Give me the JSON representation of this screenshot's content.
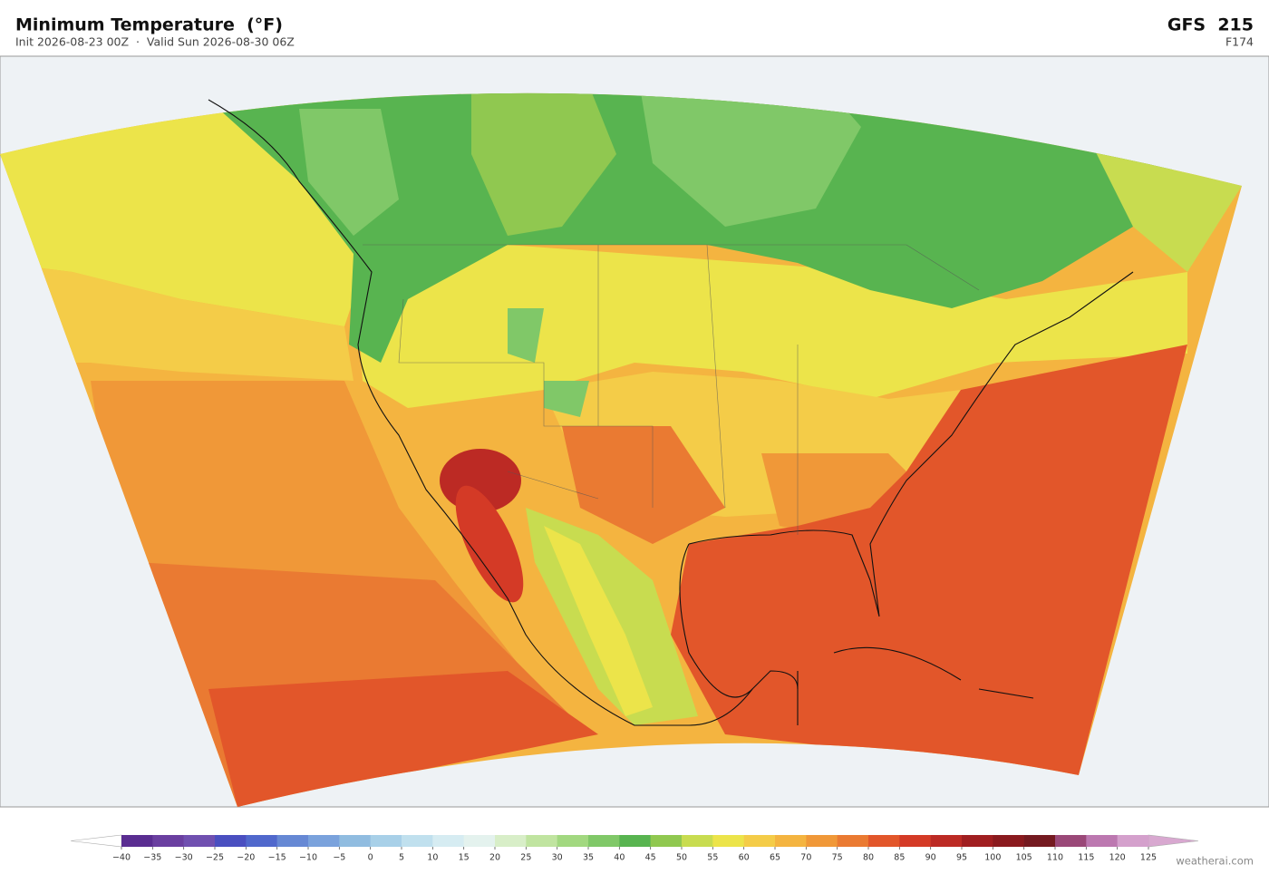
{
  "header": {
    "title": "Minimum Temperature  (°F)",
    "subtitle": "Init 2026-08-23 00Z  ·  Valid Sun 2026-08-30 06Z",
    "model": "GFS  215",
    "forecast_hour": "F174"
  },
  "colorbar": {
    "ticks": [
      {
        "value": -40,
        "label": "−40"
      },
      {
        "value": -35,
        "label": "−35"
      },
      {
        "value": -30,
        "label": "−30"
      },
      {
        "value": -25,
        "label": "−25"
      },
      {
        "value": -20,
        "label": "−20"
      },
      {
        "value": -15,
        "label": "−15"
      },
      {
        "value": -10,
        "label": "−10"
      },
      {
        "value": -5,
        "label": "−5"
      },
      0,
      5,
      10,
      15,
      20,
      25,
      30,
      35,
      40,
      45,
      50,
      55,
      60,
      65,
      70,
      75,
      80,
      85,
      90,
      95,
      100,
      105,
      110,
      115,
      120,
      125
    ],
    "colors": [
      "#5a2d91",
      "#6a3fa0",
      "#7050b0",
      "#4a4fc0",
      "#5068cc",
      "#6688d4",
      "#7aa2dc",
      "#90bce0",
      "#a8d0e8",
      "#c0e0ee",
      "#d6ecf2",
      "#e4f2ee",
      "#d8eec8",
      "#c0e4a0",
      "#a2d880",
      "#80c868",
      "#58b450",
      "#90c850",
      "#c8dc50",
      "#ece44a",
      "#f4cc48",
      "#f4b440",
      "#f09838",
      "#ea7a32",
      "#e2562a",
      "#d43a26",
      "#bc2a24",
      "#a01e20",
      "#8a1a1e",
      "#741a20",
      "#9a4878",
      "#bc78b0",
      "#d4a0cc"
    ],
    "under_color": "#ffffff",
    "over_color": "#d8a8d0"
  },
  "footer": {
    "credit": "weatherai.com"
  }
}
